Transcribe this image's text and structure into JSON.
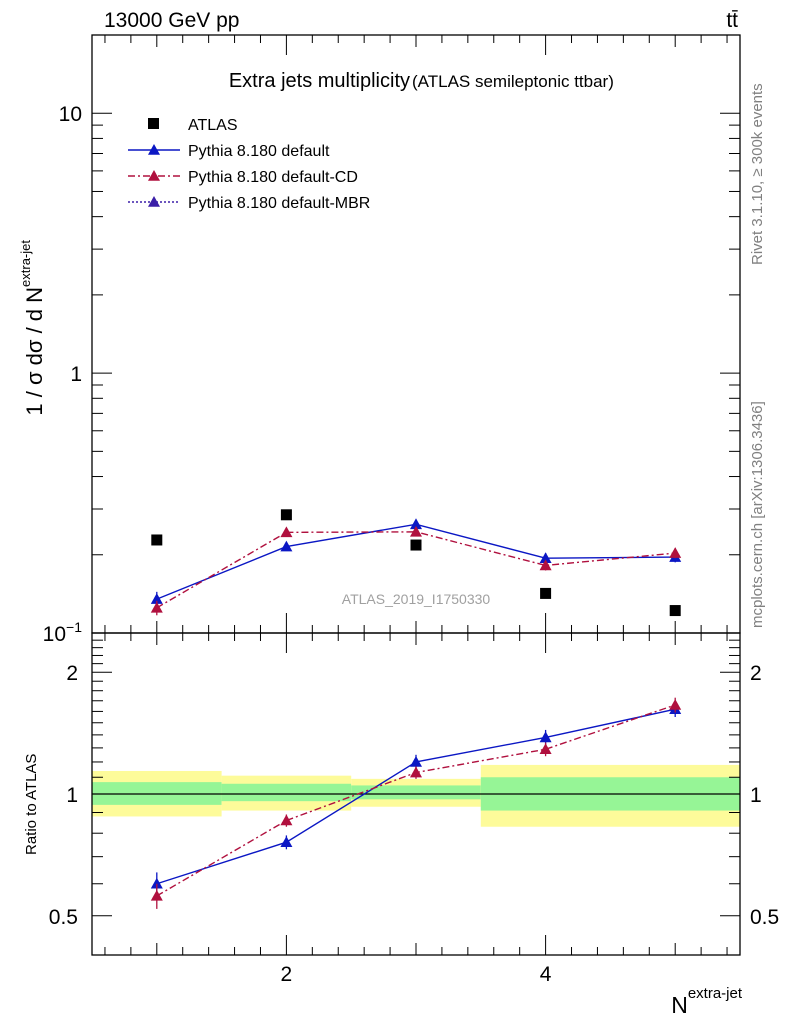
{
  "header": {
    "energy_label": "13000 GeV pp",
    "process_label": "tt̄"
  },
  "side_labels": {
    "rivet": "Rivet 3.1.10, ≥ 300k events",
    "mcplots": "mcplots.cern.ch [arXiv:1306.3436]"
  },
  "chart_data": {
    "type": "line",
    "title": "Extra jets multiplicity",
    "subtitle": "(ATLAS semileptonic ttbar)",
    "watermark": "ATLAS_2019_I1750330",
    "xlabel": "N",
    "xlabel_sup": "extra-jet",
    "ylabel": "1 / σ dσ / d N",
    "ylabel_sup": "extra-jet",
    "xlim": [
      0.5,
      5.5
    ],
    "xticks": [
      2,
      4
    ],
    "main": {
      "yscale": "log",
      "ylim": [
        0.1,
        20
      ],
      "yticks": [
        {
          "value": 0.1,
          "label": "10",
          "sup": "−1"
        },
        {
          "value": 1,
          "label": "1",
          "sup": ""
        },
        {
          "value": 10,
          "label": "10",
          "sup": ""
        }
      ]
    },
    "ratio": {
      "ylabel": "Ratio to ATLAS",
      "yscale": "log",
      "ylim": [
        0.4,
        2.5
      ],
      "yticks": [
        {
          "value": 0.5,
          "label": "0.5"
        },
        {
          "value": 1,
          "label": "1"
        },
        {
          "value": 2,
          "label": "2"
        }
      ],
      "bands": [
        {
          "x0": 0.5,
          "x1": 1.5,
          "green": [
            0.94,
            1.07
          ],
          "yellow": [
            0.88,
            1.14
          ]
        },
        {
          "x0": 1.5,
          "x1": 2.5,
          "green": [
            0.96,
            1.06
          ],
          "yellow": [
            0.91,
            1.11
          ]
        },
        {
          "x0": 2.5,
          "x1": 3.5,
          "green": [
            0.97,
            1.05
          ],
          "yellow": [
            0.93,
            1.09
          ]
        },
        {
          "x0": 3.5,
          "x1": 5.5,
          "green": [
            0.91,
            1.1
          ],
          "yellow": [
            0.83,
            1.18
          ]
        }
      ]
    },
    "series": [
      {
        "name": "ATLAS",
        "kind": "data",
        "color": "#000000",
        "x": [
          1,
          2,
          3,
          4,
          5
        ],
        "y": [
          0.228,
          0.285,
          0.218,
          0.142,
          0.122
        ]
      },
      {
        "name": "Pythia 8.180 default",
        "kind": "mc",
        "color": "#0b17c4",
        "dash": "",
        "x": [
          1,
          2,
          3,
          4,
          5
        ],
        "y": [
          0.135,
          0.215,
          0.262,
          0.194,
          0.196
        ],
        "yerr": [
          0.009,
          0.007,
          0.009,
          0.009,
          0.009
        ],
        "ratio": [
          0.6,
          0.76,
          1.2,
          1.38,
          1.62
        ],
        "ratio_err": [
          0.04,
          0.03,
          0.05,
          0.06,
          0.07
        ]
      },
      {
        "name": "Pythia 8.180 default-CD",
        "kind": "mc",
        "color": "#b0103e",
        "dash": "7,3,2,3",
        "x": [
          1,
          2,
          3,
          4,
          5
        ],
        "y": [
          0.125,
          0.244,
          0.245,
          0.182,
          0.203
        ],
        "yerr": [
          0.008,
          0.008,
          0.009,
          0.008,
          0.009
        ],
        "ratio": [
          0.56,
          0.86,
          1.13,
          1.29,
          1.66
        ],
        "ratio_err": [
          0.04,
          0.03,
          0.04,
          0.05,
          0.07
        ]
      },
      {
        "name": "Pythia 8.180 default-MBR",
        "kind": "mc",
        "color": "#3b1fa8",
        "dash": "2,2",
        "x": [],
        "y": [],
        "ratio": []
      }
    ]
  }
}
